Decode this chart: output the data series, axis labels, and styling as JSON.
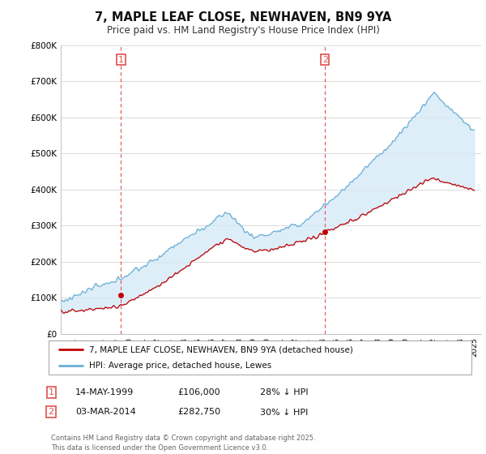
{
  "title": "7, MAPLE LEAF CLOSE, NEWHAVEN, BN9 9YA",
  "subtitle": "Price paid vs. HM Land Registry's House Price Index (HPI)",
  "legend_entry1": "7, MAPLE LEAF CLOSE, NEWHAVEN, BN9 9YA (detached house)",
  "legend_entry2": "HPI: Average price, detached house, Lewes",
  "purchase1_date": "14-MAY-1999",
  "purchase1_price": 106000,
  "purchase1_label": "28% ↓ HPI",
  "purchase2_date": "03-MAR-2014",
  "purchase2_price": 282750,
  "purchase2_label": "30% ↓ HPI",
  "footer": "Contains HM Land Registry data © Crown copyright and database right 2025.\nThis data is licensed under the Open Government Licence v3.0.",
  "ylim": [
    0,
    800000
  ],
  "yticks": [
    0,
    100000,
    200000,
    300000,
    400000,
    500000,
    600000,
    700000,
    800000
  ],
  "ytick_labels": [
    "£0",
    "£100K",
    "£200K",
    "£300K",
    "£400K",
    "£500K",
    "£600K",
    "£700K",
    "£800K"
  ],
  "hpi_color": "#6aaed6",
  "hpi_fill_color": "#d6eaf8",
  "price_color": "#c00000",
  "vline_color": "#e05050",
  "background_color": "#ffffff",
  "grid_color": "#cccccc",
  "sale1_year": 1999.37,
  "sale2_year": 2014.17
}
